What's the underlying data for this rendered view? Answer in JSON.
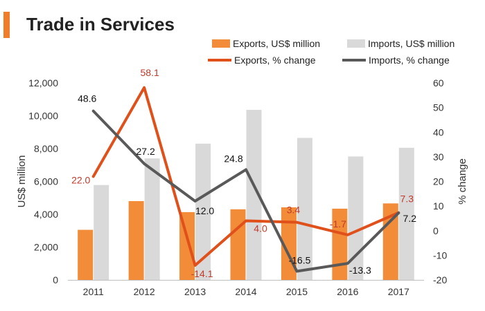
{
  "header": {
    "title": "Trade in Services"
  },
  "colors": {
    "accent": "#f07d2a",
    "exports_bar": "#f28c38",
    "imports_bar": "#d9d9d9",
    "exports_line": "#e0501a",
    "imports_line": "#595959",
    "exports_label": "#c0392b",
    "imports_label": "#111111",
    "axis_text": "#333333"
  },
  "chart_data": {
    "type": "bar",
    "title": "",
    "categories": [
      "2011",
      "2012",
      "2013",
      "2014",
      "2015",
      "2016",
      "2017"
    ],
    "series": [
      {
        "name": "Exports, US$ million",
        "type": "bar",
        "axis": "left",
        "values": [
          3050,
          4800,
          4130,
          4300,
          4420,
          4340,
          4660
        ]
      },
      {
        "name": "Imports, US$ million",
        "type": "bar",
        "axis": "left",
        "values": [
          5780,
          7400,
          8300,
          10360,
          8650,
          7520,
          8050
        ]
      },
      {
        "name": "Exports, % change",
        "type": "line",
        "axis": "right",
        "values": [
          22.0,
          58.1,
          -14.1,
          4.0,
          3.4,
          -1.7,
          7.3
        ],
        "labels": [
          "22.0",
          "58.1",
          "-14.1",
          "4.0",
          "3.4",
          "-1.7",
          "7.3"
        ]
      },
      {
        "name": "Imports, % change",
        "type": "line",
        "axis": "right",
        "values": [
          48.6,
          27.2,
          12.0,
          24.8,
          -16.5,
          -13.3,
          7.2
        ],
        "labels": [
          "48.6",
          "27.2",
          "12.0",
          "24.8",
          "-16.5",
          "-13.3",
          "7.2"
        ]
      }
    ],
    "ylabel": "US$ million",
    "ylim": [
      0,
      12000
    ],
    "yticks": [
      "0",
      "2,000",
      "4,000",
      "6,000",
      "8,000",
      "10,000",
      "12,000"
    ],
    "y2label": "% change",
    "y2lim": [
      -20,
      60
    ],
    "y2ticks": [
      "-20",
      "-10",
      "0",
      "10",
      "20",
      "30",
      "40",
      "50",
      "60"
    ],
    "grid": false,
    "legend_position": "top"
  }
}
